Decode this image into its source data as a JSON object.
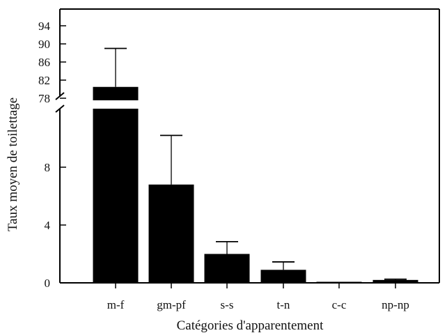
{
  "chart_data": {
    "type": "bar",
    "title": "",
    "xlabel": "Catégories d'apparentement",
    "ylabel": "Taux moyen de toilettage",
    "categories": [
      "m-f",
      "gm-pf",
      "s-s",
      "t-n",
      "c-c",
      "np-np"
    ],
    "values": [
      80.5,
      6.8,
      2.0,
      0.9,
      0.05,
      0.2
    ],
    "error_upper": [
      89.0,
      10.2,
      2.85,
      1.45,
      0.05,
      0.25
    ],
    "y_lower_segment": {
      "ylim": [
        0,
        12
      ],
      "ticks": [
        0,
        4,
        8
      ]
    },
    "y_upper_segment": {
      "ylim": [
        77,
        97
      ],
      "ticks": [
        78,
        82,
        86,
        90,
        94
      ]
    },
    "axis_break": true,
    "grid": false,
    "bar_color": "#000000"
  }
}
